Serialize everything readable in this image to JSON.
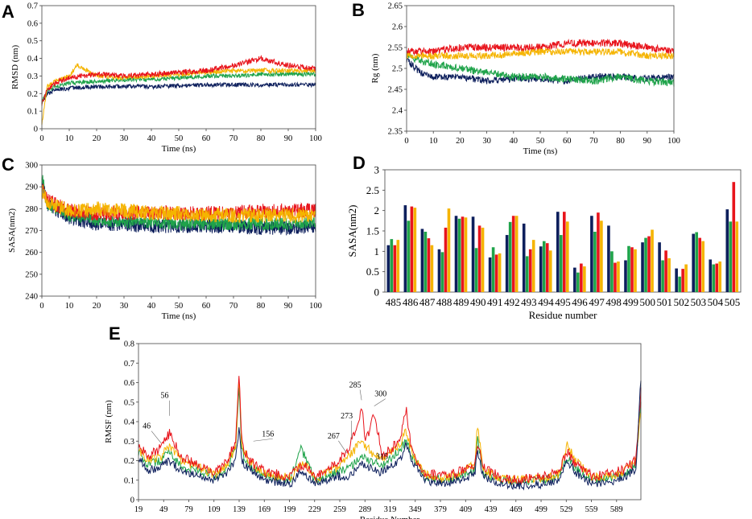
{
  "colors": {
    "navy": "#0d1f5c",
    "green": "#1fa34a",
    "red": "#e8141c",
    "orange": "#f5b400"
  },
  "chart_data": [
    {
      "panel": "A",
      "type": "line",
      "xlabel": "Time (ns)",
      "ylabel": "RMSD (nm)",
      "xlim": [
        0,
        100
      ],
      "ylim": [
        0,
        0.7
      ],
      "xticks": [
        "0",
        "10",
        "20",
        "30",
        "40",
        "50",
        "60",
        "70",
        "80",
        "90",
        "100"
      ],
      "yticks": [
        "0",
        "0.1",
        "0.2",
        "0.3",
        "0.4",
        "0.5",
        "0.6",
        "0.7"
      ],
      "series": [
        {
          "name": "navy",
          "x": [
            0,
            2,
            5,
            10,
            20,
            30,
            40,
            50,
            60,
            70,
            80,
            90,
            100
          ],
          "y": [
            0.15,
            0.2,
            0.22,
            0.23,
            0.24,
            0.24,
            0.24,
            0.245,
            0.25,
            0.25,
            0.25,
            0.25,
            0.25
          ],
          "noise": 0.012
        },
        {
          "name": "green",
          "x": [
            0,
            2,
            5,
            10,
            20,
            30,
            40,
            50,
            60,
            70,
            80,
            90,
            100
          ],
          "y": [
            0.15,
            0.22,
            0.24,
            0.26,
            0.27,
            0.28,
            0.28,
            0.29,
            0.3,
            0.3,
            0.31,
            0.31,
            0.31
          ],
          "noise": 0.012
        },
        {
          "name": "red",
          "x": [
            0,
            2,
            5,
            10,
            20,
            30,
            40,
            50,
            60,
            70,
            80,
            90,
            100
          ],
          "y": [
            0.14,
            0.22,
            0.26,
            0.29,
            0.31,
            0.3,
            0.31,
            0.32,
            0.33,
            0.36,
            0.4,
            0.36,
            0.34
          ],
          "noise": 0.015
        },
        {
          "name": "orange",
          "x": [
            0,
            2,
            5,
            10,
            13,
            20,
            30,
            40,
            50,
            60,
            70,
            80,
            90,
            100
          ],
          "y": [
            0.03,
            0.24,
            0.27,
            0.3,
            0.36,
            0.3,
            0.29,
            0.3,
            0.31,
            0.32,
            0.33,
            0.33,
            0.33,
            0.33
          ],
          "noise": 0.013
        }
      ]
    },
    {
      "panel": "B",
      "type": "line",
      "xlabel": "Time (ns)",
      "ylabel": "Rg (nm)",
      "xlim": [
        0,
        100
      ],
      "ylim": [
        2.35,
        2.65
      ],
      "xticks": [
        "0",
        "10",
        "20",
        "30",
        "40",
        "50",
        "60",
        "70",
        "80",
        "90",
        "100"
      ],
      "yticks": [
        "2.35",
        "2.4",
        "2.45",
        "2.5",
        "2.55",
        "2.6",
        "2.65"
      ],
      "series": [
        {
          "name": "navy",
          "x": [
            0,
            5,
            10,
            20,
            30,
            40,
            50,
            60,
            70,
            80,
            90,
            100
          ],
          "y": [
            2.52,
            2.49,
            2.48,
            2.48,
            2.47,
            2.475,
            2.475,
            2.47,
            2.48,
            2.48,
            2.475,
            2.48
          ],
          "noise": 0.008
        },
        {
          "name": "green",
          "x": [
            0,
            10,
            20,
            30,
            40,
            50,
            60,
            70,
            80,
            90,
            100
          ],
          "y": [
            2.53,
            2.51,
            2.5,
            2.49,
            2.48,
            2.48,
            2.475,
            2.47,
            2.48,
            2.47,
            2.465
          ],
          "noise": 0.009
        },
        {
          "name": "red",
          "x": [
            0,
            10,
            20,
            30,
            40,
            50,
            60,
            70,
            80,
            90,
            100
          ],
          "y": [
            2.54,
            2.54,
            2.55,
            2.55,
            2.55,
            2.55,
            2.56,
            2.56,
            2.56,
            2.55,
            2.54
          ],
          "noise": 0.009
        },
        {
          "name": "orange",
          "x": [
            0,
            10,
            20,
            30,
            40,
            50,
            60,
            70,
            80,
            90,
            100
          ],
          "y": [
            2.53,
            2.53,
            2.53,
            2.53,
            2.535,
            2.54,
            2.54,
            2.54,
            2.54,
            2.53,
            2.53
          ],
          "noise": 0.008
        }
      ]
    },
    {
      "panel": "C",
      "type": "line",
      "xlabel": "Time (ns)",
      "ylabel": "SASA(nm2)",
      "xlim": [
        0,
        100
      ],
      "ylim": [
        240,
        300
      ],
      "xticks": [
        "0",
        "10",
        "20",
        "30",
        "40",
        "50",
        "60",
        "70",
        "80",
        "90",
        "100"
      ],
      "yticks": [
        "240",
        "250",
        "260",
        "270",
        "280",
        "290",
        "300"
      ],
      "series": [
        {
          "name": "navy",
          "x": [
            0,
            2,
            10,
            20,
            30,
            40,
            50,
            60,
            70,
            80,
            90,
            100
          ],
          "y": [
            292,
            282,
            276,
            273,
            273,
            272,
            272,
            272,
            272,
            271,
            271,
            272
          ],
          "noise": 3.2
        },
        {
          "name": "green",
          "x": [
            0,
            2,
            10,
            20,
            30,
            40,
            50,
            60,
            70,
            80,
            90,
            100
          ],
          "y": [
            295,
            282,
            277,
            275,
            274,
            274,
            273,
            273,
            273,
            273,
            273,
            274
          ],
          "noise": 3.0
        },
        {
          "name": "red",
          "x": [
            0,
            2,
            10,
            20,
            30,
            40,
            50,
            60,
            70,
            80,
            90,
            100
          ],
          "y": [
            290,
            284,
            279,
            278,
            278,
            278,
            278,
            278,
            278,
            279,
            279,
            279
          ],
          "noise": 3.4
        },
        {
          "name": "orange",
          "x": [
            0,
            2,
            10,
            20,
            30,
            40,
            50,
            60,
            70,
            80,
            90,
            100
          ],
          "y": [
            288,
            283,
            279,
            280,
            279,
            278,
            278,
            277,
            277,
            277,
            277,
            277
          ],
          "noise": 3.4
        }
      ]
    },
    {
      "panel": "D",
      "type": "bar",
      "xlabel": "Residue number",
      "ylabel": "SASA(nm2)",
      "ylim": [
        0,
        3
      ],
      "yticks": [
        "0",
        "0.5",
        "1",
        "1.5",
        "2",
        "2.5",
        "3"
      ],
      "categories": [
        "485",
        "486",
        "487",
        "488",
        "489",
        "490",
        "491",
        "492",
        "493",
        "494",
        "495",
        "496",
        "497",
        "498",
        "499",
        "500",
        "501",
        "502",
        "503",
        "504",
        "505"
      ],
      "series": [
        {
          "name": "navy",
          "values": [
            1.15,
            2.13,
            1.55,
            1.05,
            1.87,
            1.85,
            0.85,
            1.4,
            1.68,
            1.12,
            1.97,
            0.6,
            1.87,
            1.63,
            0.78,
            1.22,
            1.22,
            0.58,
            1.43,
            0.8,
            2.03
          ]
        },
        {
          "name": "green",
          "values": [
            1.3,
            1.75,
            1.48,
            0.98,
            1.8,
            1.08,
            1.1,
            1.72,
            0.88,
            1.25,
            1.4,
            0.48,
            1.48,
            1.0,
            1.13,
            1.33,
            0.78,
            0.38,
            1.47,
            0.68,
            1.73
          ]
        },
        {
          "name": "red",
          "values": [
            1.15,
            2.1,
            1.32,
            1.58,
            1.85,
            1.63,
            0.92,
            1.87,
            1.05,
            1.2,
            1.97,
            0.7,
            1.95,
            0.72,
            1.1,
            1.37,
            1.02,
            0.57,
            1.33,
            0.7,
            2.7
          ]
        },
        {
          "name": "orange",
          "values": [
            1.28,
            2.07,
            1.15,
            2.05,
            1.83,
            1.58,
            0.95,
            1.87,
            1.28,
            1.02,
            1.73,
            0.63,
            1.75,
            0.75,
            1.05,
            1.53,
            0.83,
            0.68,
            1.25,
            0.75,
            1.73
          ]
        }
      ]
    },
    {
      "panel": "E",
      "type": "line",
      "xlabel": "Residue Number",
      "ylabel": "RMSF (nm)",
      "xlim": [
        19,
        618
      ],
      "ylim": [
        0,
        0.8
      ],
      "xticks": [
        "19",
        "49",
        "79",
        "109",
        "139",
        "169",
        "199",
        "229",
        "259",
        "289",
        "319",
        "349",
        "379",
        "409",
        "439",
        "469",
        "499",
        "529",
        "559",
        "589"
      ],
      "yticks": [
        "0",
        "0.1",
        "0.2",
        "0.3",
        "0.4",
        "0.5",
        "0.6",
        "0.7",
        "0.8"
      ],
      "annotations": [
        {
          "text": "46",
          "x": 46,
          "y": 0.29
        },
        {
          "text": "56",
          "x": 56,
          "y": 0.43
        },
        {
          "text": "156",
          "x": 156,
          "y": 0.3
        },
        {
          "text": "267",
          "x": 267,
          "y": 0.24
        },
        {
          "text": "273",
          "x": 273,
          "y": 0.31
        },
        {
          "text": "285",
          "x": 285,
          "y": 0.51
        },
        {
          "text": "300",
          "x": 300,
          "y": 0.48
        },
        {
          "text": "315",
          "x": 315,
          "y": 0.2
        }
      ],
      "series": [
        {
          "name": "navy",
          "x": [
            19,
            30,
            46,
            56,
            70,
            90,
            110,
            125,
            135,
            139,
            142,
            150,
            170,
            200,
            215,
            230,
            255,
            270,
            285,
            295,
            310,
            330,
            338,
            345,
            360,
            380,
            400,
            420,
            423,
            430,
            450,
            470,
            500,
            520,
            530,
            540,
            560,
            580,
            600,
            612,
            618
          ],
          "y": [
            0.22,
            0.15,
            0.17,
            0.2,
            0.14,
            0.13,
            0.1,
            0.14,
            0.2,
            0.38,
            0.2,
            0.16,
            0.1,
            0.08,
            0.15,
            0.08,
            0.12,
            0.12,
            0.18,
            0.16,
            0.14,
            0.2,
            0.28,
            0.2,
            0.1,
            0.08,
            0.1,
            0.13,
            0.26,
            0.12,
            0.08,
            0.07,
            0.08,
            0.1,
            0.2,
            0.14,
            0.08,
            0.09,
            0.12,
            0.15,
            0.63
          ],
          "noise": 0.022
        },
        {
          "name": "green",
          "x": [
            19,
            30,
            46,
            56,
            70,
            90,
            110,
            125,
            135,
            139,
            142,
            150,
            170,
            200,
            212,
            230,
            255,
            270,
            285,
            295,
            310,
            330,
            338,
            345,
            360,
            380,
            400,
            420,
            423,
            430,
            450,
            470,
            500,
            520,
            530,
            540,
            560,
            580,
            600,
            612,
            618
          ],
          "y": [
            0.24,
            0.18,
            0.2,
            0.25,
            0.17,
            0.15,
            0.12,
            0.16,
            0.26,
            0.6,
            0.25,
            0.18,
            0.12,
            0.1,
            0.27,
            0.1,
            0.14,
            0.16,
            0.22,
            0.2,
            0.18,
            0.25,
            0.3,
            0.22,
            0.12,
            0.1,
            0.12,
            0.16,
            0.32,
            0.14,
            0.1,
            0.09,
            0.1,
            0.12,
            0.22,
            0.16,
            0.1,
            0.11,
            0.14,
            0.18,
            0.5
          ],
          "noise": 0.022
        },
        {
          "name": "red",
          "x": [
            19,
            30,
            46,
            56,
            70,
            90,
            110,
            125,
            135,
            139,
            142,
            150,
            170,
            200,
            215,
            230,
            255,
            270,
            285,
            290,
            300,
            310,
            330,
            338,
            345,
            360,
            380,
            400,
            420,
            423,
            430,
            450,
            470,
            500,
            520,
            530,
            540,
            560,
            580,
            600,
            612,
            618
          ],
          "y": [
            0.28,
            0.22,
            0.27,
            0.34,
            0.22,
            0.18,
            0.14,
            0.2,
            0.3,
            0.67,
            0.3,
            0.2,
            0.14,
            0.12,
            0.18,
            0.12,
            0.18,
            0.26,
            0.47,
            0.3,
            0.44,
            0.22,
            0.3,
            0.47,
            0.25,
            0.14,
            0.12,
            0.14,
            0.18,
            0.3,
            0.16,
            0.12,
            0.1,
            0.12,
            0.14,
            0.25,
            0.18,
            0.12,
            0.13,
            0.16,
            0.2,
            0.55
          ],
          "noise": 0.026
        },
        {
          "name": "orange",
          "x": [
            19,
            30,
            46,
            56,
            70,
            90,
            110,
            125,
            135,
            139,
            142,
            150,
            170,
            200,
            215,
            230,
            255,
            270,
            285,
            295,
            310,
            330,
            338,
            345,
            360,
            380,
            400,
            420,
            423,
            430,
            450,
            470,
            500,
            520,
            530,
            540,
            560,
            580,
            600,
            612,
            618
          ],
          "y": [
            0.26,
            0.2,
            0.22,
            0.28,
            0.2,
            0.17,
            0.13,
            0.18,
            0.28,
            0.65,
            0.28,
            0.2,
            0.13,
            0.11,
            0.2,
            0.11,
            0.16,
            0.22,
            0.3,
            0.25,
            0.2,
            0.28,
            0.36,
            0.24,
            0.13,
            0.11,
            0.13,
            0.18,
            0.38,
            0.15,
            0.11,
            0.1,
            0.11,
            0.13,
            0.28,
            0.2,
            0.11,
            0.12,
            0.15,
            0.2,
            0.45
          ],
          "noise": 0.024
        }
      ]
    }
  ],
  "panels": [
    "A",
    "B",
    "C",
    "D",
    "E"
  ]
}
